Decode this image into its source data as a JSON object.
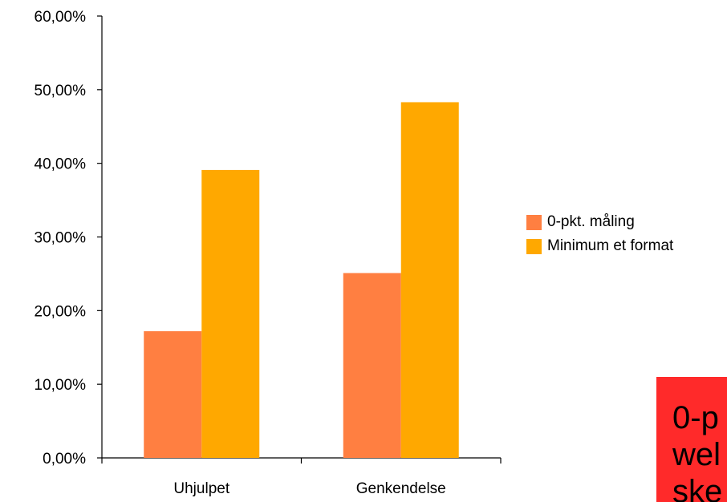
{
  "chart_data": {
    "type": "bar",
    "categories": [
      "Uhjulpet",
      "Genkendelse"
    ],
    "series": [
      {
        "name": "0-pkt. måling",
        "values": [
          17.2,
          25.1
        ],
        "color": "#ff7f41"
      },
      {
        "name": "Minimum et format",
        "values": [
          39.1,
          48.3
        ],
        "color": "#ffa800"
      }
    ],
    "ylim": [
      0,
      60
    ],
    "yticks": [
      "0,00%",
      "10,00%",
      "20,00%",
      "30,00%",
      "40,00%",
      "50,00%",
      "60,00%"
    ],
    "grid": false,
    "legend_position": "right"
  },
  "callout": {
    "text": "0-p\nwel\nske",
    "background": "#ff2a2a"
  }
}
